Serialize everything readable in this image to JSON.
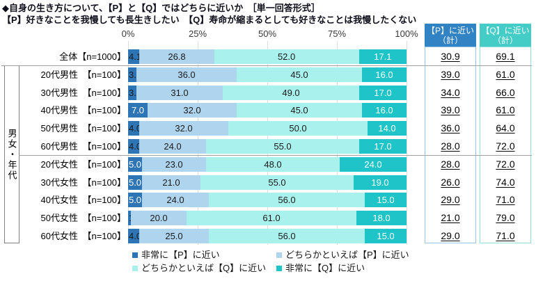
{
  "title": {
    "line1": "◆自身の生き方について、【P】と【Q】ではどちらに近いか　［単一回答形式］",
    "line2": "【P】好きなことを我慢しても長生きしたい　【Q】寿命が縮まるとしても好きなことは我慢したくない"
  },
  "axis": {
    "ticks": [
      "0%",
      "25%",
      "50%",
      "75%",
      "100%"
    ]
  },
  "group_label": "男女・年代",
  "columns": {
    "p": {
      "line1": "【P】に近い",
      "line2": "（計）"
    },
    "q": {
      "line1": "【Q】に近い",
      "line2": "（計）"
    }
  },
  "legend": [
    {
      "label": "非常に【P】に近い",
      "color": "#2E75B6"
    },
    {
      "label": "どちらかといえば【P】に近い",
      "color": "#AFD5EE"
    },
    {
      "label": "どちらかといえば【Q】に近い",
      "color": "#A8F1ED"
    },
    {
      "label": "非常に【Q】に近い",
      "color": "#1FC4C8"
    }
  ],
  "colors": {
    "segments": [
      "#2E75B6",
      "#AFD5EE",
      "#A8F1ED",
      "#1FC4C8"
    ],
    "p_header": "#3183C4",
    "q_header": "#43CDC6",
    "p_box_border": "#9DC3E6",
    "q_box_border": "#8FE2DF",
    "gridline": "#dcdcdc",
    "divider": "#a0a0a0"
  },
  "chart_data": {
    "type": "bar",
    "stacked": true,
    "orientation": "horizontal",
    "unit": "%",
    "xlim": [
      0,
      100
    ],
    "x_ticks": [
      "0%",
      "25%",
      "50%",
      "75%",
      "100%"
    ],
    "grid": true,
    "legend_position": "bottom",
    "group_label": "男女・年代",
    "categories": [
      "全体【n=1000】",
      "20代男性　【n=100】",
      "30代男性　【n=100】",
      "40代男性　【n=100】",
      "50代男性　【n=100】",
      "60代男性　【n=100】",
      "20代女性　【n=100】",
      "30代女性　【n=100】",
      "40代女性　【n=100】",
      "50代女性　【n=100】",
      "60代女性　【n=100】"
    ],
    "series": [
      {
        "name": "非常に【P】に近い",
        "values": [
          4.1,
          3.0,
          3.0,
          7.0,
          4.0,
          4.0,
          5.0,
          5.0,
          5.0,
          1.0,
          4.0
        ]
      },
      {
        "name": "どちらかといえば【P】に近い",
        "values": [
          26.8,
          36.0,
          31.0,
          32.0,
          32.0,
          24.0,
          23.0,
          21.0,
          24.0,
          20.0,
          25.0
        ]
      },
      {
        "name": "どちらかといえば【Q】に近い",
        "values": [
          52.0,
          45.0,
          49.0,
          45.0,
          50.0,
          55.0,
          48.0,
          55.0,
          56.0,
          61.0,
          56.0
        ]
      },
      {
        "name": "非常に【Q】に近い",
        "values": [
          17.1,
          16.0,
          17.0,
          16.0,
          14.0,
          17.0,
          24.0,
          19.0,
          15.0,
          18.0,
          15.0
        ]
      }
    ],
    "p_total_header": "【P】に近い（計）",
    "q_total_header": "【Q】に近い（計）",
    "p_total": [
      30.9,
      39.0,
      34.0,
      39.0,
      36.0,
      28.0,
      28.0,
      26.0,
      29.0,
      21.0,
      29.0
    ],
    "q_total": [
      69.1,
      61.0,
      66.0,
      61.0,
      64.0,
      72.0,
      72.0,
      74.0,
      71.0,
      79.0,
      71.0
    ]
  }
}
